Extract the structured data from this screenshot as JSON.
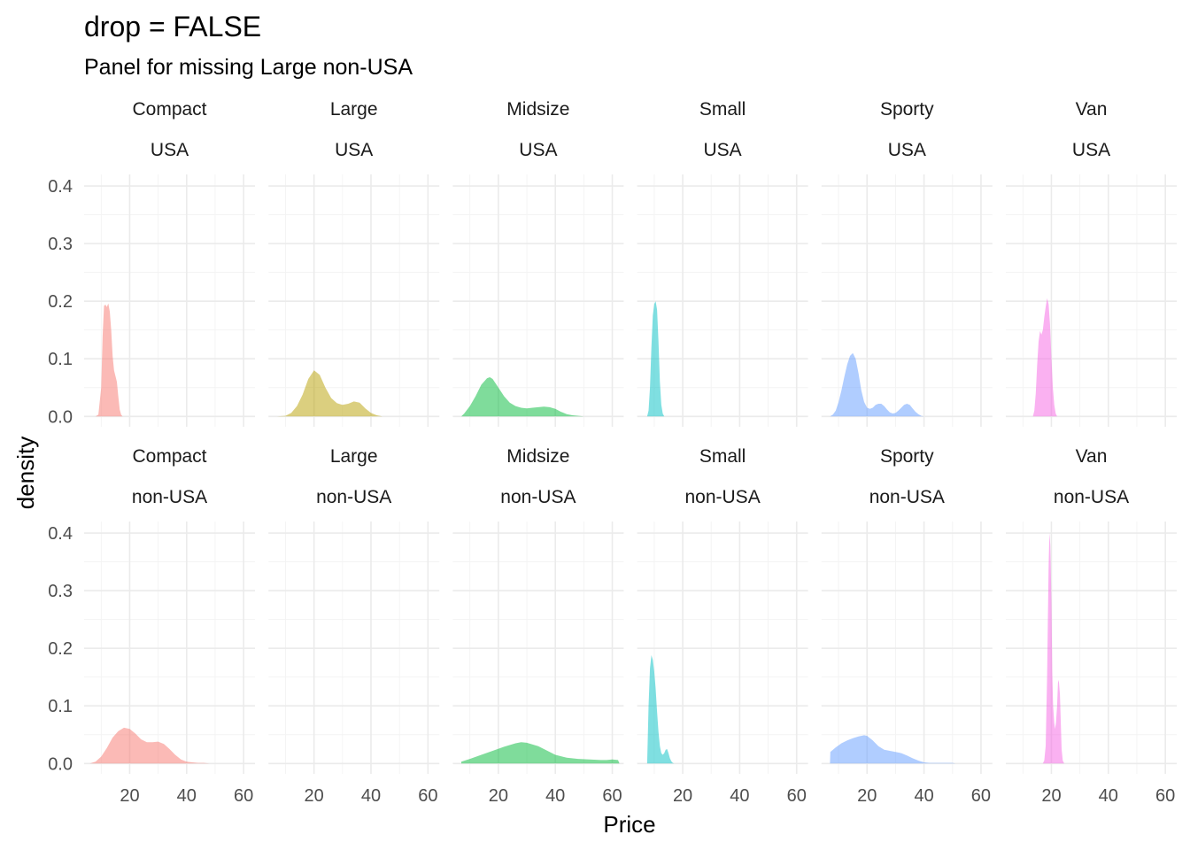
{
  "chart_data": {
    "type": "area",
    "title": "drop = FALSE",
    "subtitle": "Panel for missing Large non-USA",
    "xlabel": "Price",
    "ylabel": "density",
    "xlim": [
      4,
      64
    ],
    "ylim": [
      -0.018,
      0.42
    ],
    "x_ticks": [
      20,
      40,
      60
    ],
    "y_ticks": [
      0.0,
      0.1,
      0.2,
      0.3,
      0.4
    ],
    "y_tick_labels": [
      "0.0",
      "0.1",
      "0.2",
      "0.3",
      "0.4"
    ],
    "grid": true,
    "legend": "none",
    "columns": [
      "Compact",
      "Large",
      "Midsize",
      "Small",
      "Sporty",
      "Van"
    ],
    "rows": [
      "USA",
      "non-USA"
    ],
    "colors": {
      "Compact": "#F8766D",
      "Large": "#B79F00",
      "Midsize": "#00BA38",
      "Small": "#00BFC4",
      "Sporty": "#619CFF",
      "Van": "#F564E3"
    },
    "fill_opacity": 0.5,
    "panels": [
      {
        "type": "Compact",
        "origin": "USA",
        "points": [
          [
            8,
            0
          ],
          [
            9,
            0.003
          ],
          [
            10,
            0.05
          ],
          [
            10.5,
            0.14
          ],
          [
            11,
            0.192
          ],
          [
            11.5,
            0.194
          ],
          [
            12,
            0.19
          ],
          [
            12.5,
            0.196
          ],
          [
            13,
            0.182
          ],
          [
            13.5,
            0.15
          ],
          [
            14,
            0.105
          ],
          [
            14.5,
            0.08
          ],
          [
            15,
            0.07
          ],
          [
            15.5,
            0.06
          ],
          [
            16,
            0.035
          ],
          [
            16.5,
            0.012
          ],
          [
            17,
            0.003
          ],
          [
            17.5,
            0
          ]
        ]
      },
      {
        "type": "Large",
        "origin": "USA",
        "points": [
          [
            7,
            0
          ],
          [
            10,
            0.001
          ],
          [
            12,
            0.006
          ],
          [
            14,
            0.018
          ],
          [
            16,
            0.038
          ],
          [
            18,
            0.065
          ],
          [
            20,
            0.08
          ],
          [
            22,
            0.072
          ],
          [
            24,
            0.05
          ],
          [
            26,
            0.032
          ],
          [
            28,
            0.023
          ],
          [
            30,
            0.02
          ],
          [
            32,
            0.022
          ],
          [
            34,
            0.026
          ],
          [
            36,
            0.024
          ],
          [
            38,
            0.014
          ],
          [
            40,
            0.006
          ],
          [
            42,
            0.002
          ],
          [
            44,
            0
          ]
        ]
      },
      {
        "type": "Midsize",
        "origin": "USA",
        "points": [
          [
            7,
            0
          ],
          [
            8,
            0.005
          ],
          [
            10,
            0.018
          ],
          [
            12,
            0.035
          ],
          [
            14,
            0.055
          ],
          [
            16,
            0.066
          ],
          [
            17,
            0.068
          ],
          [
            18,
            0.065
          ],
          [
            20,
            0.05
          ],
          [
            22,
            0.035
          ],
          [
            24,
            0.024
          ],
          [
            26,
            0.018
          ],
          [
            28,
            0.015
          ],
          [
            30,
            0.014
          ],
          [
            32,
            0.015
          ],
          [
            34,
            0.016
          ],
          [
            36,
            0.017
          ],
          [
            38,
            0.016
          ],
          [
            40,
            0.013
          ],
          [
            42,
            0.008
          ],
          [
            44,
            0.004
          ],
          [
            46,
            0.002
          ],
          [
            48,
            0.001
          ],
          [
            50,
            0
          ]
        ]
      },
      {
        "type": "Small",
        "origin": "USA",
        "points": [
          [
            7.5,
            0
          ],
          [
            8,
            0.01
          ],
          [
            8.5,
            0.05
          ],
          [
            9,
            0.12
          ],
          [
            9.5,
            0.175
          ],
          [
            10,
            0.195
          ],
          [
            10.5,
            0.2
          ],
          [
            11,
            0.185
          ],
          [
            11.5,
            0.13
          ],
          [
            12,
            0.06
          ],
          [
            12.5,
            0.02
          ],
          [
            13,
            0.005
          ],
          [
            13.5,
            0
          ]
        ]
      },
      {
        "type": "Sporty",
        "origin": "USA",
        "points": [
          [
            7,
            0
          ],
          [
            8,
            0.003
          ],
          [
            9,
            0.01
          ],
          [
            10,
            0.025
          ],
          [
            11,
            0.045
          ],
          [
            12,
            0.068
          ],
          [
            13,
            0.09
          ],
          [
            14,
            0.105
          ],
          [
            15,
            0.11
          ],
          [
            16,
            0.1
          ],
          [
            17,
            0.075
          ],
          [
            18,
            0.045
          ],
          [
            19,
            0.025
          ],
          [
            20,
            0.015
          ],
          [
            21,
            0.013
          ],
          [
            22,
            0.015
          ],
          [
            23,
            0.02
          ],
          [
            24,
            0.022
          ],
          [
            25,
            0.022
          ],
          [
            26,
            0.018
          ],
          [
            27,
            0.012
          ],
          [
            28,
            0.007
          ],
          [
            29,
            0.005
          ],
          [
            30,
            0.006
          ],
          [
            31,
            0.01
          ],
          [
            32,
            0.015
          ],
          [
            33,
            0.02
          ],
          [
            34,
            0.022
          ],
          [
            35,
            0.02
          ],
          [
            36,
            0.014
          ],
          [
            37,
            0.008
          ],
          [
            38,
            0.004
          ],
          [
            39,
            0.001
          ],
          [
            40,
            0
          ]
        ]
      },
      {
        "type": "Van",
        "origin": "USA",
        "points": [
          [
            13.5,
            0
          ],
          [
            14,
            0.01
          ],
          [
            14.5,
            0.04
          ],
          [
            15,
            0.09
          ],
          [
            15.5,
            0.13
          ],
          [
            16,
            0.148
          ],
          [
            16.5,
            0.142
          ],
          [
            17,
            0.15
          ],
          [
            17.5,
            0.172
          ],
          [
            18,
            0.19
          ],
          [
            18.5,
            0.205
          ],
          [
            19,
            0.195
          ],
          [
            19.5,
            0.16
          ],
          [
            20,
            0.1
          ],
          [
            20.5,
            0.05
          ],
          [
            21,
            0.02
          ],
          [
            21.5,
            0.005
          ],
          [
            22,
            0
          ]
        ]
      },
      {
        "type": "Compact",
        "origin": "non-USA",
        "points": [
          [
            6,
            0
          ],
          [
            8,
            0.003
          ],
          [
            10,
            0.012
          ],
          [
            12,
            0.027
          ],
          [
            14,
            0.045
          ],
          [
            16,
            0.056
          ],
          [
            18,
            0.062
          ],
          [
            20,
            0.06
          ],
          [
            22,
            0.052
          ],
          [
            24,
            0.042
          ],
          [
            26,
            0.037
          ],
          [
            28,
            0.037
          ],
          [
            30,
            0.038
          ],
          [
            32,
            0.034
          ],
          [
            34,
            0.025
          ],
          [
            36,
            0.015
          ],
          [
            38,
            0.007
          ],
          [
            40,
            0.003
          ],
          [
            42,
            0.002
          ],
          [
            44,
            0.001
          ],
          [
            46,
            0.001
          ],
          [
            48,
            0
          ]
        ]
      },
      {
        "type": "Large",
        "origin": "non-USA",
        "points": []
      },
      {
        "type": "Midsize",
        "origin": "non-USA",
        "points": [
          [
            7,
            0.003
          ],
          [
            10,
            0.008
          ],
          [
            14,
            0.015
          ],
          [
            18,
            0.022
          ],
          [
            22,
            0.029
          ],
          [
            26,
            0.035
          ],
          [
            28,
            0.037
          ],
          [
            30,
            0.036
          ],
          [
            34,
            0.03
          ],
          [
            38,
            0.02
          ],
          [
            40,
            0.015
          ],
          [
            44,
            0.01
          ],
          [
            48,
            0.008
          ],
          [
            52,
            0.007
          ],
          [
            56,
            0.006
          ],
          [
            58,
            0.006
          ],
          [
            60,
            0.007
          ],
          [
            62,
            0.006
          ],
          [
            62.5,
            0
          ]
        ]
      },
      {
        "type": "Small",
        "origin": "non-USA",
        "points": [
          [
            7.5,
            0
          ],
          [
            8,
            0.1
          ],
          [
            8.5,
            0.165
          ],
          [
            9,
            0.188
          ],
          [
            9.5,
            0.18
          ],
          [
            10,
            0.16
          ],
          [
            10.5,
            0.13
          ],
          [
            11,
            0.09
          ],
          [
            11.5,
            0.055
          ],
          [
            12,
            0.03
          ],
          [
            12.5,
            0.018
          ],
          [
            13,
            0.015
          ],
          [
            13.5,
            0.018
          ],
          [
            14,
            0.024
          ],
          [
            14.5,
            0.025
          ],
          [
            15,
            0.018
          ],
          [
            15.5,
            0.009
          ],
          [
            16,
            0.004
          ],
          [
            16.5,
            0.001
          ],
          [
            17,
            0
          ]
        ]
      },
      {
        "type": "Sporty",
        "origin": "non-USA",
        "points": [
          [
            7,
            0
          ],
          [
            7.1,
            0.02
          ],
          [
            9,
            0.028
          ],
          [
            11,
            0.035
          ],
          [
            13,
            0.04
          ],
          [
            15,
            0.044
          ],
          [
            17,
            0.047
          ],
          [
            19,
            0.049
          ],
          [
            20,
            0.048
          ],
          [
            22,
            0.04
          ],
          [
            24,
            0.03
          ],
          [
            26,
            0.024
          ],
          [
            28,
            0.022
          ],
          [
            30,
            0.02
          ],
          [
            32,
            0.018
          ],
          [
            34,
            0.014
          ],
          [
            36,
            0.009
          ],
          [
            38,
            0.005
          ],
          [
            40,
            0.002
          ],
          [
            42,
            0.001
          ],
          [
            46,
            0.001
          ],
          [
            50,
            0.001
          ],
          [
            51,
            0
          ]
        ]
      },
      {
        "type": "Van",
        "origin": "non-USA",
        "points": [
          [
            17,
            0
          ],
          [
            17.5,
            0.005
          ],
          [
            18,
            0.03
          ],
          [
            18.5,
            0.15
          ],
          [
            19,
            0.34
          ],
          [
            19.3,
            0.4
          ],
          [
            19.6,
            0.38
          ],
          [
            20,
            0.28
          ],
          [
            20.3,
            0.16
          ],
          [
            20.6,
            0.1
          ],
          [
            21,
            0.07
          ],
          [
            21.3,
            0.06
          ],
          [
            21.6,
            0.07
          ],
          [
            22,
            0.1
          ],
          [
            22.3,
            0.14
          ],
          [
            22.6,
            0.145
          ],
          [
            23,
            0.12
          ],
          [
            23.3,
            0.07
          ],
          [
            23.6,
            0.025
          ],
          [
            24,
            0.005
          ],
          [
            24.5,
            0
          ]
        ]
      }
    ]
  }
}
